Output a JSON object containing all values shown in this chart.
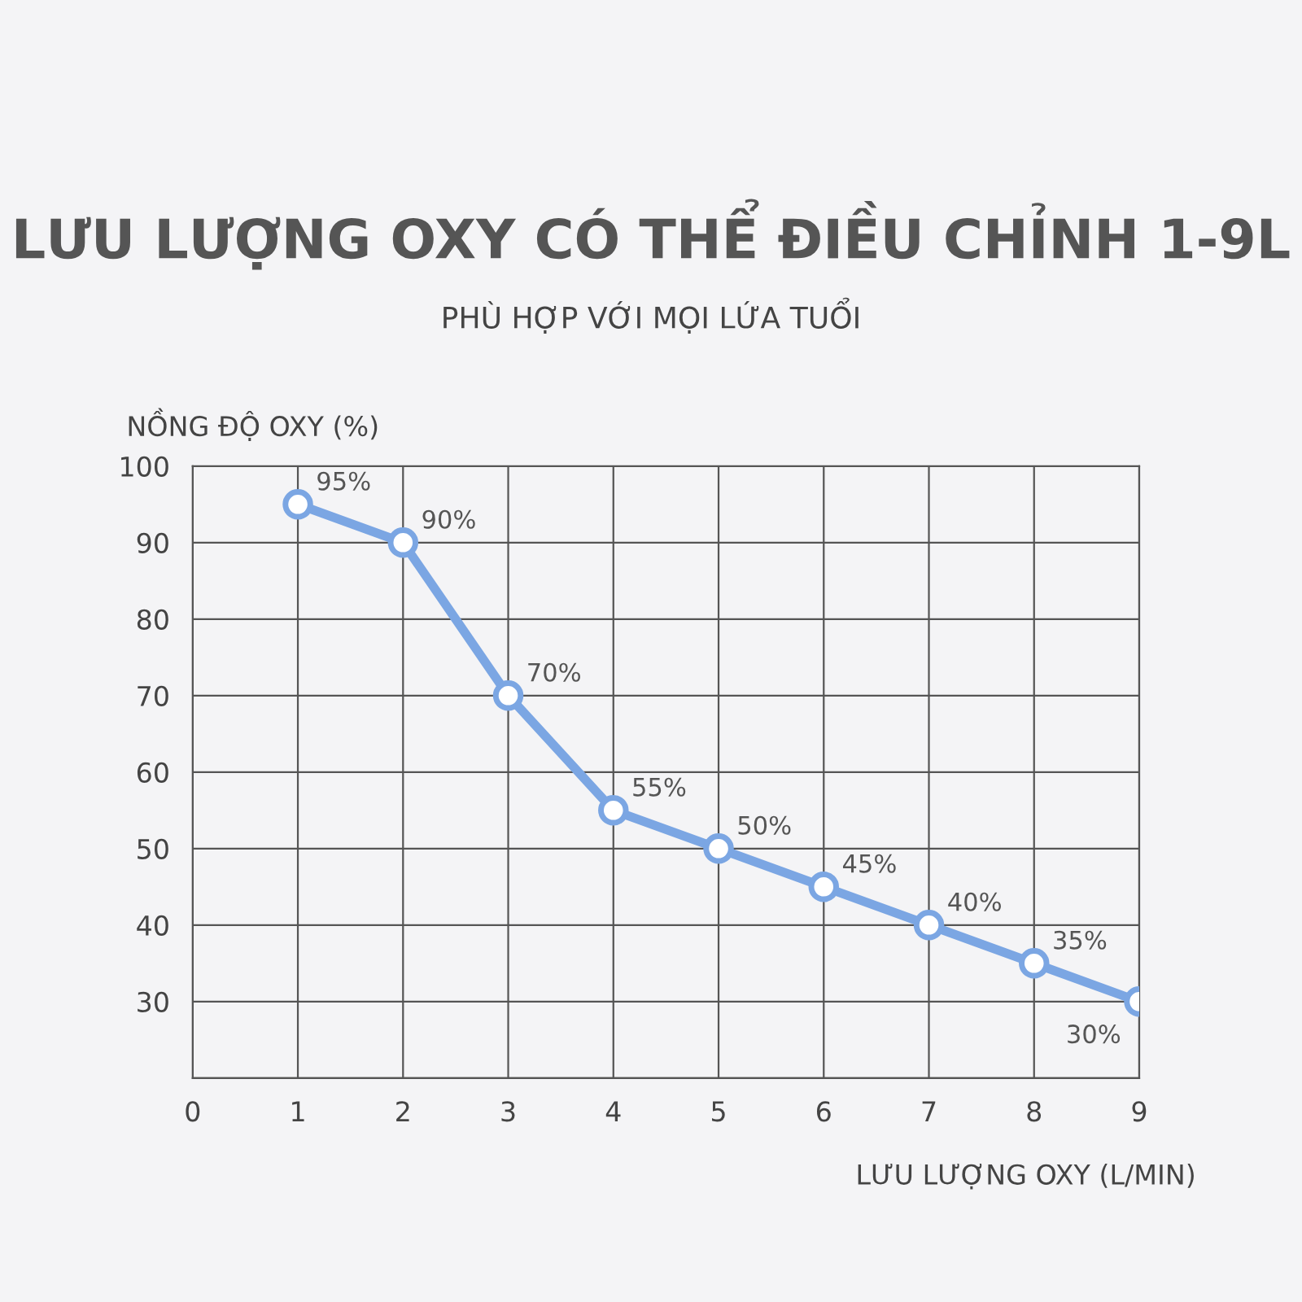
{
  "chart_data": {
    "type": "line",
    "title": "LƯU LƯỢNG OXY CÓ THỂ ĐIỀU CHỈNH 1-9L",
    "subtitle": "PHÙ HỢP VỚI MỌI LỨA TUỔI",
    "xlabel": "LƯU LƯỢNG OXY (L/MIN)",
    "ylabel": "NỒNG ĐỘ OXY (%)",
    "x": [
      1,
      2,
      3,
      4,
      5,
      6,
      7,
      8,
      9
    ],
    "series": [
      {
        "color": "#7ba6e3",
        "values": [
          95,
          90,
          70,
          55,
          50,
          45,
          40,
          35,
          30
        ],
        "value_labels": [
          "95%",
          "90%",
          "70%",
          "55%",
          "50%",
          "45%",
          "40%",
          "35%",
          "30%"
        ]
      }
    ],
    "xlim": [
      0,
      9
    ],
    "xticks": [
      0,
      1,
      2,
      3,
      4,
      5,
      6,
      7,
      8,
      9
    ],
    "ylim": [
      20,
      100
    ],
    "yticks": [
      {
        "value": 20,
        "label": null
      },
      30,
      40,
      50,
      60,
      70,
      80,
      90,
      100
    ],
    "grid": true,
    "marker": "circle",
    "line_style": "solid"
  }
}
